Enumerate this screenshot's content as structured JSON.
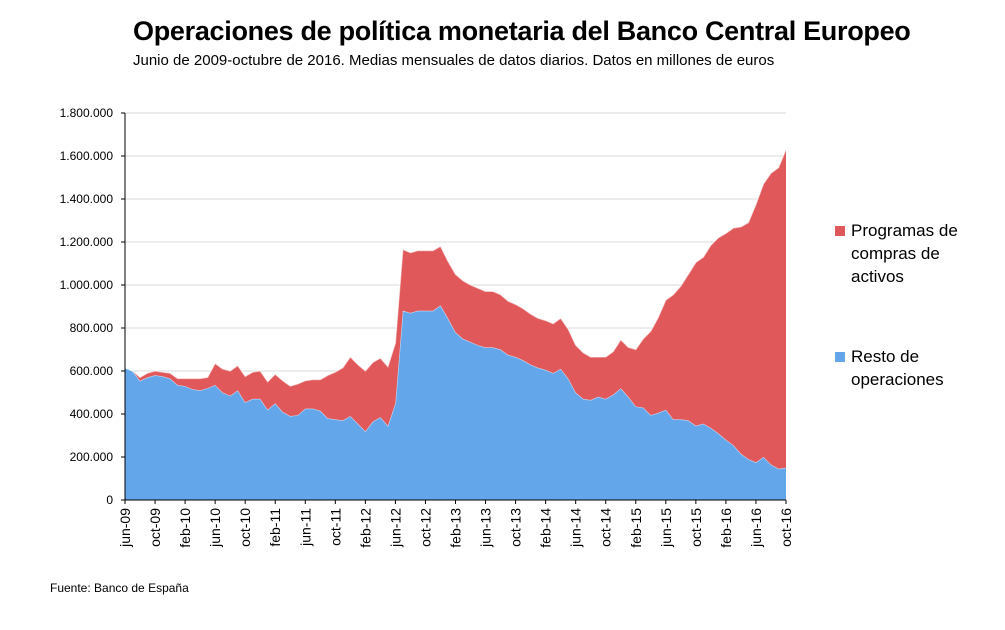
{
  "chart_data": {
    "type": "area",
    "stacked": true,
    "title": "Operaciones de política monetaria del Banco Central Europeo",
    "subtitle": "Junio de 2009-octubre de 2016. Medias mensuales de datos diarios. Datos en millones de euros",
    "source": "Fuente: Banco de España",
    "ylim": [
      0,
      1800000
    ],
    "y_ticks": [
      "0",
      "200.000",
      "400.000",
      "600.000",
      "800.000",
      "1.000.000",
      "1.200.000",
      "1.400.000",
      "1.600.000",
      "1.800.000"
    ],
    "x_tick_labels": [
      "jun-09",
      "oct-09",
      "feb-10",
      "jun-10",
      "oct-10",
      "feb-11",
      "jun-11",
      "oct-11",
      "feb-12",
      "jun-12",
      "oct-12",
      "feb-13",
      "jun-13",
      "oct-13",
      "feb-14",
      "jun-14",
      "oct-14",
      "feb-15",
      "jun-15",
      "oct-15",
      "feb-16",
      "jun-16",
      "oct-16"
    ],
    "legend_position": "right",
    "series": [
      {
        "name": "Resto de operaciones",
        "color": "#63a7ea",
        "values": [
          615000,
          600000,
          555000,
          570000,
          580000,
          575000,
          565000,
          535000,
          530000,
          515000,
          510000,
          520000,
          535000,
          500000,
          485000,
          510000,
          455000,
          470000,
          470000,
          420000,
          450000,
          410000,
          390000,
          395000,
          425000,
          425000,
          415000,
          380000,
          375000,
          370000,
          390000,
          355000,
          320000,
          365000,
          385000,
          345000,
          450000,
          880000,
          870000,
          880000,
          880000,
          880000,
          905000,
          845000,
          780000,
          750000,
          735000,
          720000,
          710000,
          710000,
          700000,
          675000,
          665000,
          650000,
          630000,
          615000,
          605000,
          590000,
          610000,
          565000,
          500000,
          470000,
          465000,
          480000,
          470000,
          490000,
          520000,
          480000,
          435000,
          430000,
          395000,
          405000,
          420000,
          375000,
          375000,
          370000,
          345000,
          355000,
          335000,
          310000,
          280000,
          255000,
          215000,
          190000,
          175000,
          200000,
          165000,
          145000,
          150000
        ]
      },
      {
        "name": "Programas de compras de activos",
        "color": "#e1585b",
        "values": [
          0,
          0,
          15000,
          20000,
          20000,
          20000,
          25000,
          30000,
          35000,
          50000,
          55000,
          50000,
          100000,
          110000,
          115000,
          115000,
          120000,
          125000,
          130000,
          130000,
          135000,
          145000,
          140000,
          145000,
          130000,
          135000,
          145000,
          200000,
          220000,
          245000,
          275000,
          275000,
          280000,
          275000,
          275000,
          275000,
          280000,
          285000,
          280000,
          280000,
          280000,
          280000,
          275000,
          265000,
          270000,
          270000,
          265000,
          265000,
          260000,
          260000,
          255000,
          250000,
          245000,
          240000,
          235000,
          230000,
          230000,
          230000,
          235000,
          230000,
          220000,
          215000,
          200000,
          185000,
          195000,
          200000,
          225000,
          230000,
          265000,
          320000,
          390000,
          445000,
          510000,
          580000,
          620000,
          680000,
          760000,
          775000,
          850000,
          910000,
          960000,
          1010000,
          1055000,
          1100000,
          1200000,
          1270000,
          1355000,
          1400000,
          1480000
        ]
      }
    ]
  }
}
